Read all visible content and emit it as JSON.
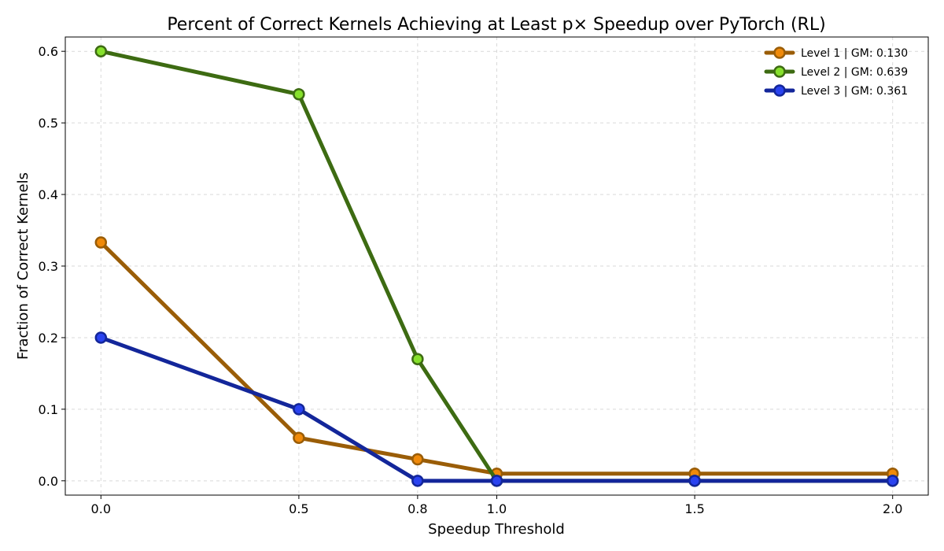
{
  "chart_data": {
    "type": "line",
    "title": "Percent of Correct Kernels Achieving at Least p× Speedup over PyTorch (RL)",
    "xlabel": "Speedup Threshold",
    "ylabel": "Fraction of Correct Kernels",
    "x": [
      0.0,
      0.5,
      0.8,
      1.0,
      1.5,
      2.0
    ],
    "xticks": [
      "0.0",
      "0.5",
      "0.8",
      "1.0",
      "1.5",
      "2.0"
    ],
    "xlim": [
      -0.09,
      2.09
    ],
    "yticks": [
      "0.0",
      "0.1",
      "0.2",
      "0.3",
      "0.4",
      "0.5",
      "0.6"
    ],
    "ylim": [
      -0.02,
      0.62
    ],
    "grid": true,
    "legend_position": "top-right",
    "series": [
      {
        "name": "Level 1 | GM: 0.130",
        "line_color": "#9a5d07",
        "marker_color": "#f08a0a",
        "marker_edge": "#9a5d07",
        "values": [
          0.333,
          0.06,
          0.03,
          0.01,
          0.01,
          0.01
        ]
      },
      {
        "name": "Level 2 | GM: 0.639",
        "line_color": "#3d6b12",
        "marker_color": "#86e02c",
        "marker_edge": "#3d6b12",
        "values": [
          0.6,
          0.54,
          0.17,
          0.0,
          0.0,
          0.0
        ]
      },
      {
        "name": "Level 3 | GM: 0.361",
        "line_color": "#13269a",
        "marker_color": "#2a43f0",
        "marker_edge": "#13269a",
        "values": [
          0.2,
          0.1,
          0.0,
          0.0,
          0.0,
          0.0
        ]
      }
    ]
  }
}
